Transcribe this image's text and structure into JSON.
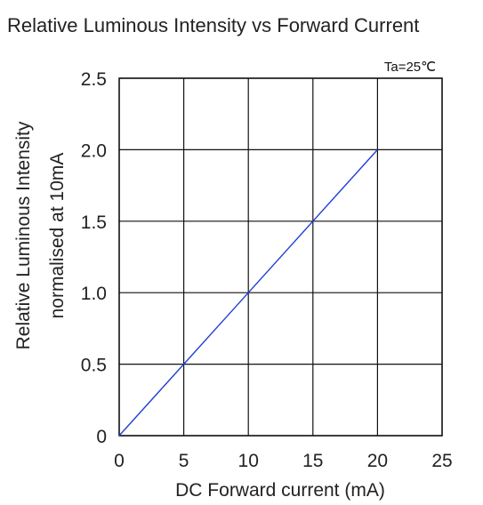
{
  "chart_data": {
    "type": "line",
    "title": "Relative Luminous Intensity vs Forward Current",
    "annotation": "Ta=25℃",
    "xlabel": "DC Forward current (mA)",
    "ylabel_line1": "Relative Luminous Intensity",
    "ylabel_line2": "normalised at 10mA",
    "xlim": [
      0,
      25
    ],
    "ylim": [
      0,
      2.5
    ],
    "x_ticks": [
      0,
      5,
      10,
      15,
      20,
      25
    ],
    "x_tick_labels": [
      "0",
      "5",
      "10",
      "15",
      "20",
      "25"
    ],
    "y_ticks": [
      0,
      0.5,
      1.0,
      1.5,
      2.0,
      2.5
    ],
    "y_tick_labels": [
      "0",
      "0.5",
      "1.0",
      "1.5",
      "2.0",
      "2.5"
    ],
    "grid": true,
    "series": [
      {
        "color": "#1f3fd6",
        "x": [
          0,
          5,
          10,
          15,
          20
        ],
        "y": [
          0,
          0.5,
          1.0,
          1.5,
          2.0
        ]
      }
    ]
  }
}
